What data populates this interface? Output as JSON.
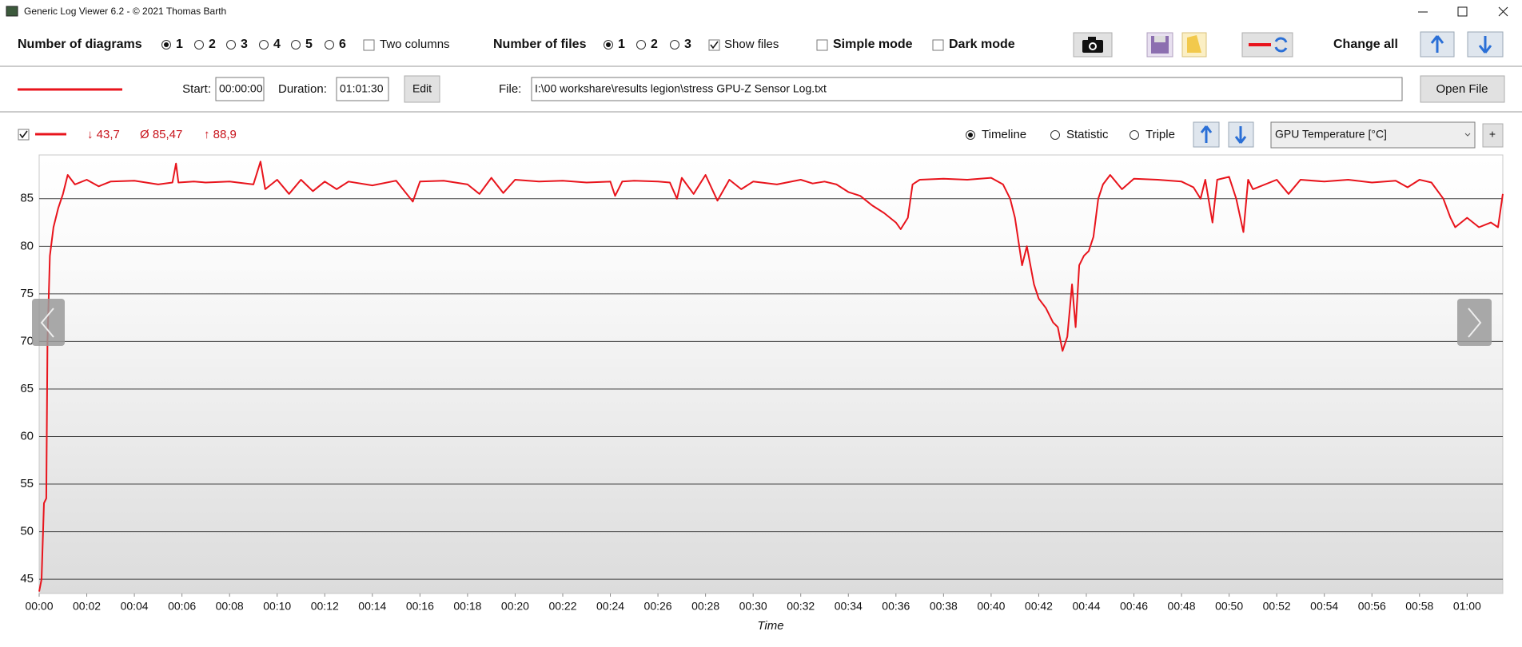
{
  "window": {
    "title": "Generic Log Viewer 6.2 - © 2021 Thomas Barth"
  },
  "toolbar": {
    "diagrams_label": "Number of diagrams",
    "diagram_options": [
      "1",
      "2",
      "3",
      "4",
      "5",
      "6"
    ],
    "two_columns": "Two columns",
    "files_label": "Number of files",
    "file_options": [
      "1",
      "2",
      "3"
    ],
    "show_files": "Show files",
    "simple_mode": "Simple mode",
    "dark_mode": "Dark mode",
    "change_all": "Change all"
  },
  "file_row": {
    "start_label": "Start:",
    "start": "00:00:00",
    "duration_label": "Duration:",
    "duration": "01:01:30",
    "edit": "Edit",
    "file_label": "File:",
    "file_path": "I:\\00 workshare\\results legion\\stress GPU-Z Sensor Log.txt",
    "open_file": "Open File"
  },
  "series_stats": {
    "min": "↓ 43,7",
    "avg": "Ø 85,47",
    "max": "↑ 88,9"
  },
  "view_options": [
    "Timeline",
    "Statistic",
    "Triple"
  ],
  "sensor_select": "GPU Temperature [°C]",
  "add_button": "+",
  "chart_data": {
    "type": "line",
    "xlabel": "Time",
    "color": "#e8141c",
    "xlim": [
      0,
      61.5
    ],
    "ylim": [
      43.5,
      89.6
    ],
    "grid": true,
    "yticks": [
      45,
      50,
      55,
      60,
      65,
      70,
      75,
      80,
      85
    ],
    "xticks": [
      {
        "value": 0,
        "label": "00:00"
      },
      {
        "value": 2,
        "label": "00:02"
      },
      {
        "value": 4,
        "label": "00:04"
      },
      {
        "value": 6,
        "label": "00:06"
      },
      {
        "value": 8,
        "label": "00:08"
      },
      {
        "value": 10,
        "label": "00:10"
      },
      {
        "value": 12,
        "label": "00:12"
      },
      {
        "value": 14,
        "label": "00:14"
      },
      {
        "value": 16,
        "label": "00:16"
      },
      {
        "value": 18,
        "label": "00:18"
      },
      {
        "value": 20,
        "label": "00:20"
      },
      {
        "value": 22,
        "label": "00:22"
      },
      {
        "value": 24,
        "label": "00:24"
      },
      {
        "value": 26,
        "label": "00:26"
      },
      {
        "value": 28,
        "label": "00:28"
      },
      {
        "value": 30,
        "label": "00:30"
      },
      {
        "value": 32,
        "label": "00:32"
      },
      {
        "value": 34,
        "label": "00:34"
      },
      {
        "value": 36,
        "label": "00:36"
      },
      {
        "value": 38,
        "label": "00:38"
      },
      {
        "value": 40,
        "label": "00:40"
      },
      {
        "value": 42,
        "label": "00:42"
      },
      {
        "value": 44,
        "label": "00:44"
      },
      {
        "value": 46,
        "label": "00:46"
      },
      {
        "value": 48,
        "label": "00:48"
      },
      {
        "value": 50,
        "label": "00:50"
      },
      {
        "value": 52,
        "label": "00:52"
      },
      {
        "value": 54,
        "label": "00:54"
      },
      {
        "value": 56,
        "label": "00:56"
      },
      {
        "value": 58,
        "label": "00:58"
      },
      {
        "value": 60,
        "label": "01:00"
      }
    ],
    "x": [
      0,
      0.1,
      0.2,
      0.3,
      0.35,
      0.45,
      0.6,
      0.8,
      1.0,
      1.2,
      1.5,
      2,
      2.5,
      3,
      4,
      5,
      5.6,
      5.75,
      5.85,
      6.5,
      7,
      8,
      9,
      9.3,
      9.5,
      10,
      10.5,
      11,
      11.5,
      12,
      12.5,
      13,
      14,
      15,
      15.7,
      16,
      17,
      18,
      18.5,
      19,
      19.5,
      20,
      21,
      22,
      23,
      24,
      24.2,
      24.5,
      25,
      26,
      26.5,
      26.8,
      27,
      27.5,
      28,
      28.5,
      29,
      29.5,
      30,
      31,
      32,
      32.5,
      33,
      33.5,
      34,
      34.5,
      35,
      35.5,
      36,
      36.2,
      36.5,
      36.7,
      37,
      38,
      39,
      40,
      40.5,
      40.8,
      41,
      41.3,
      41.5,
      41.8,
      42,
      42.3,
      42.6,
      42.8,
      43,
      43.2,
      43.4,
      43.55,
      43.7,
      43.9,
      44.1,
      44.3,
      44.5,
      44.7,
      45,
      45.5,
      46,
      47,
      48,
      48.5,
      48.8,
      49,
      49.3,
      49.5,
      50,
      50.3,
      50.6,
      50.8,
      51,
      52,
      52.5,
      53,
      54,
      55,
      56,
      57,
      57.5,
      58,
      58.5,
      59,
      59.3,
      59.5,
      60,
      60.5,
      61,
      61.3,
      61.5
    ],
    "values": [
      43.7,
      45,
      53,
      53.5,
      70,
      79,
      82,
      84,
      85.5,
      87.5,
      86.5,
      87,
      86.3,
      86.8,
      86.9,
      86.5,
      86.7,
      88.7,
      86.7,
      86.8,
      86.7,
      86.8,
      86.5,
      88.9,
      86,
      87,
      85.5,
      87,
      85.8,
      86.8,
      86,
      86.8,
      86.4,
      86.9,
      84.7,
      86.8,
      86.9,
      86.5,
      85.5,
      87.2,
      85.6,
      87,
      86.8,
      86.9,
      86.7,
      86.8,
      85.3,
      86.8,
      86.9,
      86.8,
      86.7,
      85,
      87.2,
      85.5,
      87.5,
      84.8,
      87,
      86,
      86.8,
      86.5,
      87,
      86.6,
      86.8,
      86.5,
      85.7,
      85.3,
      84.3,
      83.5,
      82.5,
      81.8,
      83,
      86.5,
      87,
      87.1,
      87,
      87.2,
      86.5,
      85,
      83,
      78,
      80,
      76,
      74.5,
      73.5,
      72,
      71.5,
      69,
      70.5,
      76,
      71.5,
      78,
      79,
      79.5,
      81,
      85,
      86.5,
      87.5,
      86,
      87.1,
      87,
      86.8,
      86.2,
      85,
      87,
      82.5,
      87,
      87.3,
      85,
      81.5,
      87,
      86,
      87,
      85.5,
      87,
      86.8,
      87,
      86.7,
      86.9,
      86.2,
      87,
      86.7,
      85,
      83,
      82,
      83,
      82,
      82.5,
      82,
      85.5
    ]
  }
}
